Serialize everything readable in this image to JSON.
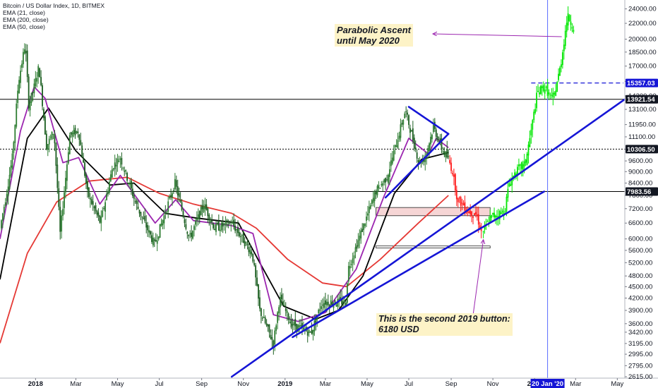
{
  "legend": {
    "title": "Bitcoin / US Dollar Index, 1D, BITMEX",
    "studies": [
      "EMA (21, close)",
      "EMA (200, close)",
      "EMA (50, close)"
    ]
  },
  "annotations": {
    "parabolic": [
      "Parabolic Ascent",
      "until May 2020"
    ],
    "bottom": [
      "This is the second 2019 button:",
      "6180 USD"
    ]
  },
  "colors": {
    "background": "#ffffff",
    "price_up": "#2e7d32",
    "price_down": "#1b5e20",
    "projection_up": "#00e600",
    "projection_down": "#ff1a1a",
    "ema21": "#9c27b0",
    "ema50": "#000000",
    "ema200": "#e53935",
    "channel": "#1515d6",
    "annotation_bg": "#fdf3c7",
    "arrow": "#9c27b0",
    "box_fill": "#f6d5d5",
    "vline": "#5b6cff",
    "level_box": "#1515d6"
  },
  "chart_data": {
    "type": "line",
    "title": "Bitcoin / US Dollar Index, 1D, BITMEX",
    "y_scale": "log",
    "ylim": [
      2615,
      25000
    ],
    "y_ticks": [
      24000,
      22000,
      20000,
      18500,
      17000,
      15500,
      14200,
      13100,
      11950,
      11100,
      10300,
      9600,
      9000,
      8400,
      7800,
      7200,
      6600,
      6000,
      5600,
      5200,
      4800,
      4500,
      4200,
      3900,
      3600,
      3420,
      3195,
      2995,
      2795,
      2615
    ],
    "y_tick_labels": [
      "24000.00",
      "22000.00",
      "20000.00",
      "18500.00",
      "17000.00",
      "15500.00",
      "14200.00",
      "13100.00",
      "11950.00",
      "11100.00",
      "10300.00",
      "9600.00",
      "9000.00",
      "8400.00",
      "7800.00",
      "7200.00",
      "6600.00",
      "6000.00",
      "5600.00",
      "5200.00",
      "4800.00",
      "4500.00",
      "4200.00",
      "3900.00",
      "3600.00",
      "3420.00",
      "3195.00",
      "2995.00",
      "2795.00",
      "2615.00"
    ],
    "xlim": [
      "2017-11-10",
      "2020-05-12"
    ],
    "x_ticks": [
      {
        "date": "2018-01-01",
        "label": "2018",
        "major": true
      },
      {
        "date": "2018-03-01",
        "label": "Mar",
        "major": false
      },
      {
        "date": "2018-05-01",
        "label": "May",
        "major": false
      },
      {
        "date": "2018-07-01",
        "label": "Jul",
        "major": false
      },
      {
        "date": "2018-09-01",
        "label": "Sep",
        "major": false
      },
      {
        "date": "2018-11-01",
        "label": "Nov",
        "major": false
      },
      {
        "date": "2019-01-01",
        "label": "2019",
        "major": true
      },
      {
        "date": "2019-03-01",
        "label": "Mar",
        "major": false
      },
      {
        "date": "2019-05-01",
        "label": "May",
        "major": false
      },
      {
        "date": "2019-07-01",
        "label": "Jul",
        "major": false
      },
      {
        "date": "2019-09-01",
        "label": "Sep",
        "major": false
      },
      {
        "date": "2019-11-01",
        "label": "Nov",
        "major": false
      },
      {
        "date": "2020-01-01",
        "label": "2020",
        "major": true
      },
      {
        "date": "2020-03-01",
        "label": "Mar",
        "major": false
      },
      {
        "date": "2020-05-01",
        "label": "May",
        "major": false
      }
    ],
    "vertical_marker": {
      "date": "2020-01-20",
      "label": "20 Jan '20"
    },
    "horizontal_levels": [
      {
        "value": 13921.54,
        "label": "13921.54",
        "style": "solid"
      },
      {
        "value": 10306.5,
        "label": "10306.50",
        "style": "dotted"
      },
      {
        "value": 7983.56,
        "label": "7983.56",
        "style": "solid"
      }
    ],
    "projection_level": {
      "value": 15357.03,
      "label": "15357.03",
      "from": "2019-12-27",
      "to": "2020-05-10"
    },
    "price_series": [
      {
        "date": "2017-11-10",
        "price": 6400
      },
      {
        "date": "2017-11-20",
        "price": 8000
      },
      {
        "date": "2017-11-28",
        "price": 9800
      },
      {
        "date": "2017-12-07",
        "price": 15500
      },
      {
        "date": "2017-12-17",
        "price": 19500
      },
      {
        "date": "2017-12-22",
        "price": 13500
      },
      {
        "date": "2017-12-28",
        "price": 14500
      },
      {
        "date": "2018-01-06",
        "price": 17000
      },
      {
        "date": "2018-01-17",
        "price": 10500
      },
      {
        "date": "2018-01-28",
        "price": 11500
      },
      {
        "date": "2018-02-06",
        "price": 6200
      },
      {
        "date": "2018-02-20",
        "price": 11200
      },
      {
        "date": "2018-03-05",
        "price": 11500
      },
      {
        "date": "2018-03-18",
        "price": 7900
      },
      {
        "date": "2018-04-06",
        "price": 6600
      },
      {
        "date": "2018-04-24",
        "price": 9300
      },
      {
        "date": "2018-05-05",
        "price": 9800
      },
      {
        "date": "2018-05-28",
        "price": 7400
      },
      {
        "date": "2018-06-24",
        "price": 5800
      },
      {
        "date": "2018-07-24",
        "price": 8400
      },
      {
        "date": "2018-08-14",
        "price": 6000
      },
      {
        "date": "2018-09-04",
        "price": 7400
      },
      {
        "date": "2018-09-20",
        "price": 6400
      },
      {
        "date": "2018-10-15",
        "price": 6600
      },
      {
        "date": "2018-11-14",
        "price": 5500
      },
      {
        "date": "2018-11-25",
        "price": 3900
      },
      {
        "date": "2018-12-15",
        "price": 3200
      },
      {
        "date": "2018-12-24",
        "price": 4200
      },
      {
        "date": "2019-01-10",
        "price": 3600
      },
      {
        "date": "2019-02-08",
        "price": 3400
      },
      {
        "date": "2019-02-24",
        "price": 4100
      },
      {
        "date": "2019-03-31",
        "price": 4100
      },
      {
        "date": "2019-04-03",
        "price": 5000
      },
      {
        "date": "2019-05-14",
        "price": 8000
      },
      {
        "date": "2019-05-30",
        "price": 8700
      },
      {
        "date": "2019-06-26",
        "price": 13000
      },
      {
        "date": "2019-07-16",
        "price": 9500
      },
      {
        "date": "2019-07-25",
        "price": 9800
      },
      {
        "date": "2019-08-06",
        "price": 11800
      },
      {
        "date": "2019-08-20",
        "price": 10200
      },
      {
        "date": "2019-08-28",
        "price": 9700
      }
    ],
    "projection_down": [
      {
        "date": "2019-08-28",
        "price": 9700
      },
      {
        "date": "2019-09-04",
        "price": 8900
      },
      {
        "date": "2019-09-10",
        "price": 7600
      },
      {
        "date": "2019-09-18",
        "price": 7400
      },
      {
        "date": "2019-09-26",
        "price": 7100
      },
      {
        "date": "2019-10-08",
        "price": 6950
      },
      {
        "date": "2019-10-16",
        "price": 6180
      }
    ],
    "projection_up": [
      {
        "date": "2019-10-16",
        "price": 6180
      },
      {
        "date": "2019-10-28",
        "price": 6800
      },
      {
        "date": "2019-11-18",
        "price": 7100
      },
      {
        "date": "2019-11-25",
        "price": 8400
      },
      {
        "date": "2019-12-05",
        "price": 9000
      },
      {
        "date": "2019-12-18",
        "price": 9400
      },
      {
        "date": "2019-12-27",
        "price": 11500
      },
      {
        "date": "2020-01-05",
        "price": 14500
      },
      {
        "date": "2020-01-15",
        "price": 15000
      },
      {
        "date": "2020-01-28",
        "price": 13800
      },
      {
        "date": "2020-02-08",
        "price": 17000
      },
      {
        "date": "2020-02-18",
        "price": 23000
      },
      {
        "date": "2020-02-27",
        "price": 21500
      }
    ],
    "ema21": [
      {
        "date": "2017-11-10",
        "price": 6000
      },
      {
        "date": "2017-12-10",
        "price": 11500
      },
      {
        "date": "2017-12-30",
        "price": 15000
      },
      {
        "date": "2018-01-15",
        "price": 14000
      },
      {
        "date": "2018-02-10",
        "price": 9500
      },
      {
        "date": "2018-03-05",
        "price": 9800
      },
      {
        "date": "2018-04-05",
        "price": 7400
      },
      {
        "date": "2018-05-05",
        "price": 8800
      },
      {
        "date": "2018-06-25",
        "price": 6600
      },
      {
        "date": "2018-07-25",
        "price": 7600
      },
      {
        "date": "2018-08-20",
        "price": 6700
      },
      {
        "date": "2018-10-15",
        "price": 6500
      },
      {
        "date": "2018-11-15",
        "price": 6200
      },
      {
        "date": "2018-12-15",
        "price": 3800
      },
      {
        "date": "2019-01-20",
        "price": 3650
      },
      {
        "date": "2019-03-01",
        "price": 3850
      },
      {
        "date": "2019-04-15",
        "price": 5000
      },
      {
        "date": "2019-05-25",
        "price": 7700
      },
      {
        "date": "2019-07-01",
        "price": 11000
      },
      {
        "date": "2019-07-30",
        "price": 10000
      },
      {
        "date": "2019-08-10",
        "price": 11000
      },
      {
        "date": "2019-08-28",
        "price": 10400
      }
    ],
    "ema50": [
      {
        "date": "2017-11-10",
        "price": 4700
      },
      {
        "date": "2017-12-20",
        "price": 11000
      },
      {
        "date": "2018-01-20",
        "price": 13200
      },
      {
        "date": "2018-03-01",
        "price": 10200
      },
      {
        "date": "2018-04-20",
        "price": 8300
      },
      {
        "date": "2018-05-25",
        "price": 8400
      },
      {
        "date": "2018-07-10",
        "price": 7000
      },
      {
        "date": "2018-08-25",
        "price": 6800
      },
      {
        "date": "2018-10-25",
        "price": 6600
      },
      {
        "date": "2018-11-25",
        "price": 5200
      },
      {
        "date": "2018-12-30",
        "price": 4000
      },
      {
        "date": "2019-02-15",
        "price": 3700
      },
      {
        "date": "2019-03-20",
        "price": 3900
      },
      {
        "date": "2019-04-25",
        "price": 4800
      },
      {
        "date": "2019-06-10",
        "price": 7900
      },
      {
        "date": "2019-07-20",
        "price": 9700
      },
      {
        "date": "2019-08-28",
        "price": 10100
      }
    ],
    "ema200": [
      {
        "date": "2017-11-10",
        "price": 3200
      },
      {
        "date": "2017-12-20",
        "price": 5500
      },
      {
        "date": "2018-02-01",
        "price": 7500
      },
      {
        "date": "2018-03-20",
        "price": 8500
      },
      {
        "date": "2018-05-15",
        "price": 8700
      },
      {
        "date": "2018-07-01",
        "price": 7900
      },
      {
        "date": "2018-08-20",
        "price": 7400
      },
      {
        "date": "2018-10-15",
        "price": 7000
      },
      {
        "date": "2018-11-20",
        "price": 6400
      },
      {
        "date": "2019-01-05",
        "price": 5300
      },
      {
        "date": "2019-02-25",
        "price": 4600
      },
      {
        "date": "2019-04-01",
        "price": 4500
      },
      {
        "date": "2019-05-20",
        "price": 5300
      },
      {
        "date": "2019-07-15",
        "price": 6600
      },
      {
        "date": "2019-08-28",
        "price": 7800
      }
    ],
    "trendlines": [
      {
        "name": "channel-upper",
        "from": {
          "date": "2018-10-15",
          "price": 2615
        },
        "to": {
          "date": "2020-05-12",
          "price": 13921.54
        },
        "color": "#1515d6"
      },
      {
        "name": "channel-lower",
        "from": {
          "date": "2019-01-12",
          "price": 3320
        },
        "to": {
          "date": "2020-01-15",
          "price": 7983.56
        },
        "color": "#1515d6"
      },
      {
        "name": "triangle-upper",
        "from": {
          "date": "2019-07-01",
          "price": 13300
        },
        "to": {
          "date": "2019-08-28",
          "price": 11300
        },
        "color": "#1515d6"
      },
      {
        "name": "triangle-lower",
        "from": {
          "date": "2019-05-28",
          "price": 7700
        },
        "to": {
          "date": "2019-08-28",
          "price": 11300
        },
        "color": "#1515d6"
      }
    ],
    "zones": [
      {
        "name": "resistance-zone",
        "from": "2019-05-14",
        "to": "2019-10-28",
        "top": 7250,
        "bottom": 6900
      },
      {
        "name": "support-level",
        "from": "2019-05-14",
        "to": "2019-10-28",
        "top": 5750,
        "bottom": 5680
      }
    ],
    "annotation_points": {
      "bottom_arrow_to": {
        "date": "2019-10-16",
        "price": 6180
      },
      "parabolic_arrow_from": {
        "date": "2020-02-18",
        "price": 20300
      }
    }
  }
}
